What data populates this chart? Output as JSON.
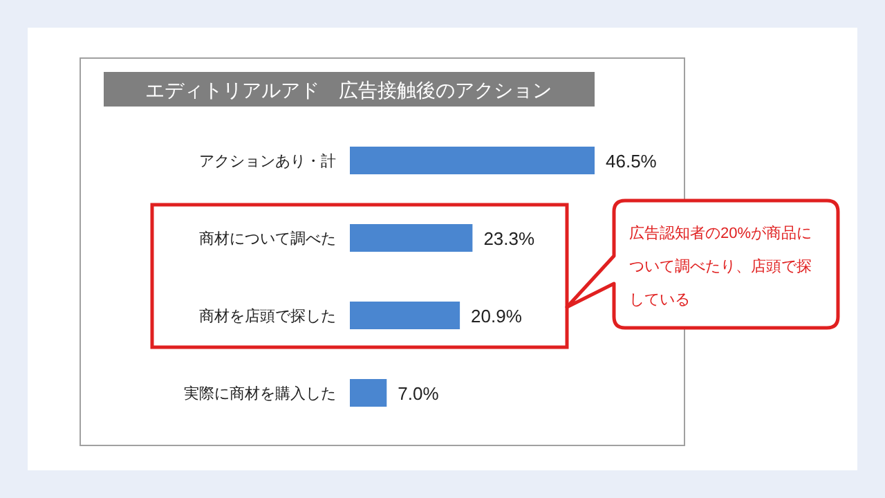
{
  "chart_data": {
    "type": "bar",
    "orientation": "horizontal",
    "title": "エディトリアルアド　広告接触後のアクション",
    "categories": [
      "アクションあり・計",
      "商材について調べた",
      "商材を店頭で探した",
      "実際に商材を購入した"
    ],
    "values": [
      46.5,
      23.3,
      20.9,
      7.0
    ],
    "value_labels": [
      "46.5%",
      "23.3%",
      "20.9%",
      "7.0%"
    ],
    "color": "#4a86d0",
    "annotations": [
      "広告認知者の20%が商品について調べたり、店頭で探している"
    ]
  }
}
